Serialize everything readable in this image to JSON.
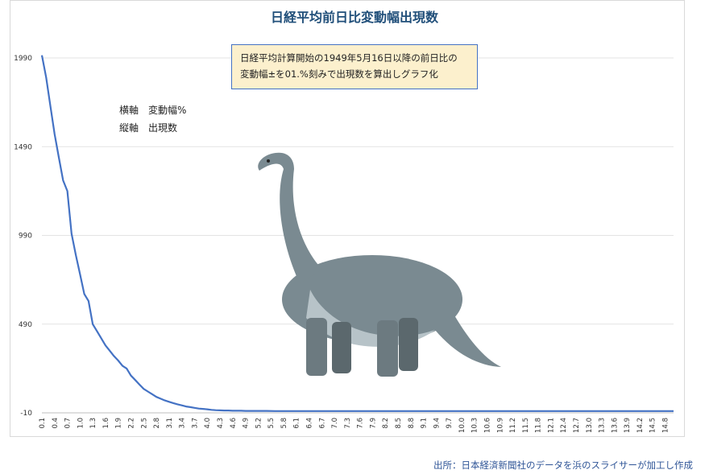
{
  "chart_data": {
    "type": "line",
    "title": "日経平均前日比変動幅出現数",
    "xlabel": "",
    "ylabel": "",
    "ylim": [
      -10,
      2010
    ],
    "y_ticks": [
      "1990",
      "1490",
      "990",
      "490",
      "-10"
    ],
    "y_tick_values": [
      1990,
      1490,
      990,
      490,
      -10
    ],
    "x_tick_labels": [
      "0.1",
      "0.4",
      "0.7",
      "1.0",
      "1.3",
      "1.6",
      "1.9",
      "2.2",
      "2.5",
      "2.8",
      "3.1",
      "3.4",
      "3.7",
      "4.0",
      "4.3",
      "4.6",
      "4.9",
      "5.2",
      "5.5",
      "5.8",
      "6.1",
      "6.4",
      "6.7",
      "7.0",
      "7.3",
      "7.6",
      "7.9",
      "8.2",
      "8.5",
      "8.8",
      "9.1",
      "9.4",
      "9.7",
      "10.0",
      "10.3",
      "10.6",
      "10.9",
      "11.2",
      "11.5",
      "11.8",
      "12.1",
      "12.4",
      "12.7",
      "13.0",
      "13.3",
      "13.6",
      "13.9",
      "14.2",
      "14.5",
      "14.8"
    ],
    "grid": true,
    "series": [
      {
        "color": "#4472c4",
        "x": [
          0.1,
          0.2,
          0.3,
          0.4,
          0.5,
          0.6,
          0.7,
          0.8,
          0.9,
          1.0,
          1.1,
          1.2,
          1.3,
          1.4,
          1.5,
          1.6,
          1.7,
          1.8,
          1.9,
          2.0,
          2.1,
          2.2,
          2.3,
          2.4,
          2.5,
          2.6,
          2.7,
          2.8,
          2.9,
          3.0,
          3.1,
          3.2,
          3.3,
          3.4,
          3.5,
          3.6,
          3.7,
          3.8,
          3.9,
          4.0,
          4.1,
          4.2,
          4.3,
          4.4,
          4.5,
          4.6,
          4.7,
          4.8,
          4.9,
          5.0,
          5.2,
          5.4,
          5.6,
          5.8,
          6.0,
          6.5,
          7.0,
          7.5,
          8.0,
          9.0,
          10.0,
          11.0,
          12.0,
          13.0,
          14.0,
          15.0
        ],
        "values": [
          2005,
          1880,
          1720,
          1560,
          1430,
          1300,
          1240,
          1000,
          880,
          770,
          660,
          620,
          490,
          450,
          410,
          370,
          340,
          310,
          285,
          255,
          240,
          200,
          175,
          150,
          125,
          110,
          95,
          80,
          70,
          60,
          52,
          45,
          38,
          32,
          26,
          22,
          18,
          14,
          12,
          10,
          7,
          5,
          4,
          3,
          3,
          2,
          2,
          2,
          1,
          1,
          1,
          1,
          0,
          0,
          0,
          0,
          0,
          0,
          0,
          0,
          0,
          0,
          0,
          0,
          0,
          0
        ]
      }
    ]
  },
  "note": {
    "line1": "日経平均計算開始の1949年5月16日以降の前日比の",
    "line2": "変動幅±を01.%刻みで出現数を算出しグラフ化"
  },
  "axis_legend": {
    "x": "横軸　変動幅%",
    "y": "縦軸　出現数"
  },
  "source": "出所：日本経済新聞社のデータを浜のスライサーが加工し作成",
  "colors": {
    "title": "#1f4e79",
    "line": "#4472c4",
    "note_bg": "#fcf0cd",
    "dino_body": "#7a8a91",
    "dino_belly": "#b7c3c8"
  }
}
